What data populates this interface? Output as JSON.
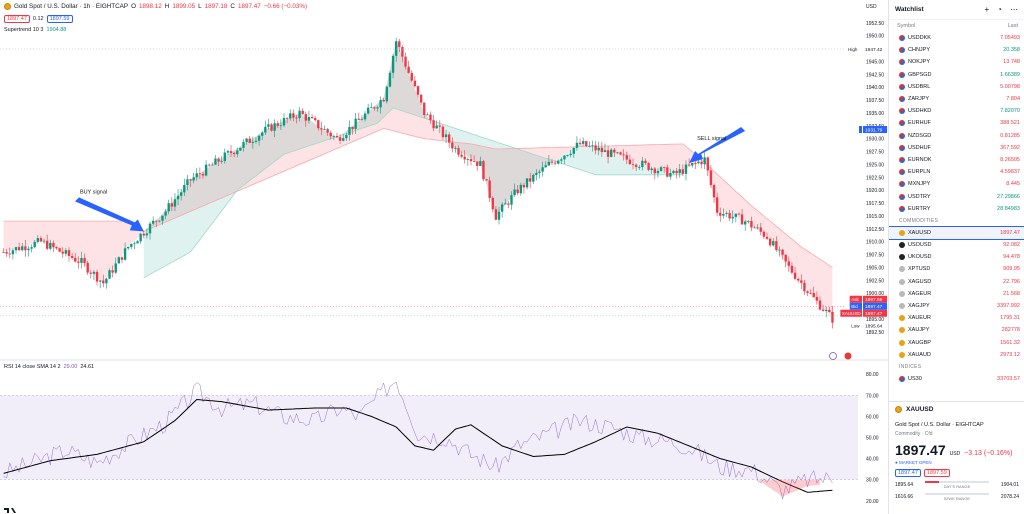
{
  "header": {
    "symbol_title": "Gold Spot / U.S. Dollar · 1h · EIGHTCAP",
    "open_label": "O",
    "open": "1898.12",
    "high_label": "H",
    "high": "1899.05",
    "low_label": "L",
    "low": "1897.18",
    "close_label": "C",
    "close": "1897.47",
    "change": "−0.66 (−0.03%)",
    "sell_chip": "1897.47",
    "spread": "0.12",
    "buy_chip": "1897.59",
    "indicator_legend": "Supertrend 10 3",
    "indicator_value": "1904.88"
  },
  "rsi_legend": {
    "label": "RSI 14 close SMA 14 2",
    "rsi_value": "29.00",
    "sma_value": "24.61"
  },
  "annotations": {
    "buy_signal": "BUY signal",
    "sell_signal": "SELL signal"
  },
  "axis_extras": {
    "currency": "USD",
    "high_tag": "High",
    "high_value": "1947.42",
    "low_tag": "Low",
    "low_value": "1895.64",
    "ask_tag": "Ask",
    "ask_value": "1897.59",
    "bid_tag": "Bid",
    "bid_value": "1897.47",
    "sym_tag": "XAUUSD",
    "sym_value": "1897.47",
    "st_value": "1931.79"
  },
  "chart_data": [
    {
      "type": "candlestick",
      "title": "Gold Spot / U.S. Dollar · 1h · EIGHTCAP",
      "ylabel": "USD",
      "ylim": [
        1888,
        1955
      ],
      "y_ticks": [
        "1952.50",
        "1950.00",
        "1947.50",
        "1945.00",
        "1942.50",
        "1940.00",
        "1937.50",
        "1935.00",
        "1932.50",
        "1930.00",
        "1927.50",
        "1925.00",
        "1922.50",
        "1920.00",
        "1917.50",
        "1915.00",
        "1912.50",
        "1910.00",
        "1907.50",
        "1905.00",
        "1902.50",
        "1900.00",
        "1897.50",
        "1895.00",
        "1892.50"
      ],
      "y_tick_values": [
        1952.5,
        1950,
        1947.5,
        1945,
        1942.5,
        1940,
        1937.5,
        1935,
        1932.5,
        1930,
        1927.5,
        1925,
        1922.5,
        1920,
        1917.5,
        1915,
        1912.5,
        1910,
        1907.5,
        1905,
        1902.5,
        1900,
        1897.5,
        1895,
        1892.5
      ],
      "close_anchors": [
        [
          0,
          1908
        ],
        [
          12,
          1910
        ],
        [
          25,
          1906
        ],
        [
          32,
          1902
        ],
        [
          40,
          1909
        ],
        [
          52,
          1916
        ],
        [
          60,
          1922
        ],
        [
          72,
          1927
        ],
        [
          85,
          1932
        ],
        [
          95,
          1935
        ],
        [
          107,
          1930
        ],
        [
          113,
          1933
        ],
        [
          122,
          1938
        ],
        [
          126,
          1949
        ],
        [
          128,
          1946
        ],
        [
          135,
          1935
        ],
        [
          145,
          1928
        ],
        [
          153,
          1925
        ],
        [
          158,
          1915
        ],
        [
          165,
          1920
        ],
        [
          175,
          1925
        ],
        [
          185,
          1929
        ],
        [
          195,
          1927
        ],
        [
          205,
          1925
        ],
        [
          215,
          1923
        ],
        [
          225,
          1926
        ],
        [
          229,
          1916
        ],
        [
          238,
          1914
        ],
        [
          245,
          1911
        ],
        [
          252,
          1905
        ],
        [
          260,
          1899
        ],
        [
          266,
          1895
        ]
      ],
      "supertrend_resistance": [
        [
          0,
          1914
        ],
        [
          40,
          1914
        ],
        [
          45,
          1912
        ],
        [
          122,
          1932
        ],
        [
          135,
          1930
        ],
        [
          150,
          1929
        ],
        [
          158,
          1928
        ],
        [
          218,
          1929
        ],
        [
          222,
          1927
        ],
        [
          240,
          1917
        ],
        [
          256,
          1909
        ],
        [
          266,
          1905
        ]
      ],
      "supertrend_support": [
        [
          45,
          1903
        ],
        [
          60,
          1908
        ],
        [
          75,
          1920
        ],
        [
          90,
          1927
        ],
        [
          105,
          1930
        ],
        [
          120,
          1933
        ],
        [
          125,
          1936
        ],
        [
          190,
          1923
        ],
        [
          218,
          1923
        ]
      ],
      "signal_candles": {
        "buy": 45,
        "sell": 220
      }
    },
    {
      "type": "line",
      "title": "RSI 14 close SMA 14 2",
      "ylim": [
        18,
        82
      ],
      "y_ticks": [
        "80.00",
        "70.00",
        "60.00",
        "50.00",
        "40.00",
        "30.00",
        "20.00"
      ],
      "y_tick_values": [
        80,
        70,
        60,
        50,
        40,
        30,
        20
      ],
      "bands": {
        "upper": 70,
        "lower": 30
      },
      "series": [
        {
          "name": "RSI",
          "color": "#7e57c2",
          "anchors": [
            [
              0,
              33
            ],
            [
              20,
              44
            ],
            [
              30,
              38
            ],
            [
              40,
              47
            ],
            [
              52,
              57
            ],
            [
              62,
              72
            ],
            [
              70,
              64
            ],
            [
              80,
              66
            ],
            [
              90,
              60
            ],
            [
              100,
              58
            ],
            [
              108,
              64
            ],
            [
              114,
              60
            ],
            [
              122,
              72
            ],
            [
              126,
              78
            ],
            [
              133,
              52
            ],
            [
              142,
              50
            ],
            [
              150,
              42
            ],
            [
              158,
              36
            ],
            [
              165,
              46
            ],
            [
              175,
              52
            ],
            [
              185,
              58
            ],
            [
              195,
              55
            ],
            [
              205,
              50
            ],
            [
              215,
              48
            ],
            [
              222,
              44
            ],
            [
              230,
              36
            ],
            [
              240,
              35
            ],
            [
              250,
              25
            ],
            [
              258,
              30
            ],
            [
              266,
              31
            ]
          ]
        },
        {
          "name": "SMA",
          "color": "#000000",
          "anchors": [
            [
              0,
              33
            ],
            [
              15,
              39
            ],
            [
              30,
              42
            ],
            [
              45,
              48
            ],
            [
              55,
              58
            ],
            [
              62,
              68
            ],
            [
              70,
              67
            ],
            [
              85,
              63
            ],
            [
              100,
              64
            ],
            [
              110,
              64
            ],
            [
              118,
              60
            ],
            [
              126,
              55
            ],
            [
              132,
              46
            ],
            [
              138,
              44
            ],
            [
              145,
              54
            ],
            [
              150,
              56
            ],
            [
              160,
              46
            ],
            [
              170,
              41
            ],
            [
              180,
              42
            ],
            [
              190,
              48
            ],
            [
              200,
              55
            ],
            [
              210,
              52
            ],
            [
              220,
              46
            ],
            [
              230,
              40
            ],
            [
              240,
              36
            ],
            [
              250,
              29
            ],
            [
              258,
              24
            ],
            [
              266,
              25
            ]
          ]
        }
      ]
    }
  ],
  "watchlist": {
    "title": "Watchlist",
    "col_symbol": "Symbol",
    "col_last": "Last",
    "forex": [
      {
        "symbol": "USDDKK",
        "last": "7.05493",
        "dir": "red"
      },
      {
        "symbol": "CHNJPY",
        "last": "20.358",
        "dir": "green"
      },
      {
        "symbol": "NOKJPY",
        "last": "13.748",
        "dir": "red"
      },
      {
        "symbol": "GBPSGD",
        "last": "1.66389",
        "dir": "green"
      },
      {
        "symbol": "USDBRL",
        "last": "5.00798",
        "dir": "red"
      },
      {
        "symbol": "ZARJPY",
        "last": "7.804",
        "dir": "red"
      },
      {
        "symbol": "USDHKD",
        "last": "7.82070",
        "dir": "green"
      },
      {
        "symbol": "EURHUF",
        "last": "388.521",
        "dir": "red"
      },
      {
        "symbol": "NZDSGD",
        "last": "0.81285",
        "dir": "red"
      },
      {
        "symbol": "USDHUF",
        "last": "367.592",
        "dir": "red"
      },
      {
        "symbol": "EURNOK",
        "last": "8.26505",
        "dir": "red"
      },
      {
        "symbol": "EURPLN",
        "last": "4.59837",
        "dir": "red"
      },
      {
        "symbol": "MXNJPY",
        "last": "8.445",
        "dir": "red"
      },
      {
        "symbol": "USDTRY",
        "last": "27.29866",
        "dir": "green"
      },
      {
        "symbol": "EURTRY",
        "last": "28.84983",
        "dir": "green"
      }
    ],
    "commodities_label": "COMMODITIES",
    "commodities": [
      {
        "symbol": "XAUUSD",
        "last": "1897.47",
        "dir": "red",
        "icon": "gold",
        "selected": true
      },
      {
        "symbol": "USOUSD",
        "last": "92.082",
        "dir": "red",
        "icon": "dark"
      },
      {
        "symbol": "UKOUSD",
        "last": "94.478",
        "dir": "red",
        "icon": "dark"
      },
      {
        "symbol": "XPTUSD",
        "last": "909.95",
        "dir": "red",
        "icon": "gray"
      },
      {
        "symbol": "XAGUSD",
        "last": "22.796",
        "dir": "red",
        "icon": "gray"
      },
      {
        "symbol": "XAGEUR",
        "last": "21.568",
        "dir": "red",
        "icon": "gray"
      },
      {
        "symbol": "XAGJPY",
        "last": "3397.992",
        "dir": "red",
        "icon": "gray"
      },
      {
        "symbol": "XAUEUR",
        "last": "1795.31",
        "dir": "red",
        "icon": "gold"
      },
      {
        "symbol": "XAUJPY",
        "last": "282778",
        "dir": "red",
        "icon": "gold"
      },
      {
        "symbol": "XAUGBP",
        "last": "1561.32",
        "dir": "red",
        "icon": "gold"
      },
      {
        "symbol": "XAUAUD",
        "last": "2973.12",
        "dir": "red",
        "icon": "gold"
      }
    ],
    "indices_label": "INDICES",
    "indices": [
      {
        "symbol": "US30",
        "last": "33703.57",
        "dir": "red"
      }
    ]
  },
  "detail": {
    "symbol": "XAUUSD",
    "name": "Gold Spot / U.S. Dollar",
    "exchange": "EIGHTCAP",
    "category": "Commodity · Cfd",
    "price": "1897.47",
    "currency": "USD",
    "change": "−3.13 (−0.16%)",
    "status": "● MARKET OPEN",
    "sell": "1897.47",
    "buy": "1897.59",
    "day_low": "1895.64",
    "day_high": "1904.01",
    "day_range_label": "DAY'S RANGE",
    "week_low": "1616.66",
    "week_high": "2078.24",
    "week_range_label": "52WK RANGE",
    "day_range_fill": 0.22
  }
}
